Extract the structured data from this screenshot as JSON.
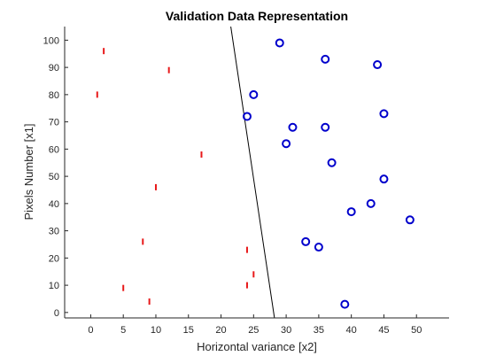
{
  "chart_data": {
    "type": "scatter",
    "title": "Validation Data Representation",
    "xlabel": "Horizontal variance [x2]",
    "ylabel": "Pixels Number [x1]",
    "xlim": [
      -4,
      55
    ],
    "ylim": [
      -2,
      105
    ],
    "xticks": [
      "0",
      "5",
      "10",
      "15",
      "20",
      "25",
      "30",
      "35",
      "40",
      "45",
      "50"
    ],
    "yticks": [
      "0",
      "10",
      "20",
      "30",
      "40",
      "50",
      "60",
      "70",
      "80",
      "90",
      "100"
    ],
    "grid": false,
    "series": [
      {
        "marker": "vertical-bar",
        "color": "#e8191a",
        "points": [
          [
            2,
            96
          ],
          [
            12,
            89
          ],
          [
            1,
            80
          ],
          [
            17,
            58
          ],
          [
            10,
            46
          ],
          [
            8,
            26
          ],
          [
            24,
            23
          ],
          [
            25,
            14
          ],
          [
            5,
            9
          ],
          [
            24,
            10
          ],
          [
            9,
            4
          ]
        ]
      },
      {
        "marker": "circle",
        "color": "#0000cc",
        "points": [
          [
            29,
            99
          ],
          [
            36,
            93
          ],
          [
            44,
            91
          ],
          [
            25,
            80
          ],
          [
            24,
            72
          ],
          [
            45,
            73
          ],
          [
            31,
            68
          ],
          [
            36,
            68
          ],
          [
            30,
            62
          ],
          [
            37,
            55
          ],
          [
            45,
            49
          ],
          [
            43,
            40
          ],
          [
            40,
            37
          ],
          [
            49,
            34
          ],
          [
            33,
            26
          ],
          [
            35,
            24
          ],
          [
            39,
            3
          ]
        ]
      }
    ],
    "boundary": {
      "color": "#000000",
      "points": [
        [
          21.5,
          105
        ],
        [
          28.2,
          -2
        ]
      ]
    }
  }
}
